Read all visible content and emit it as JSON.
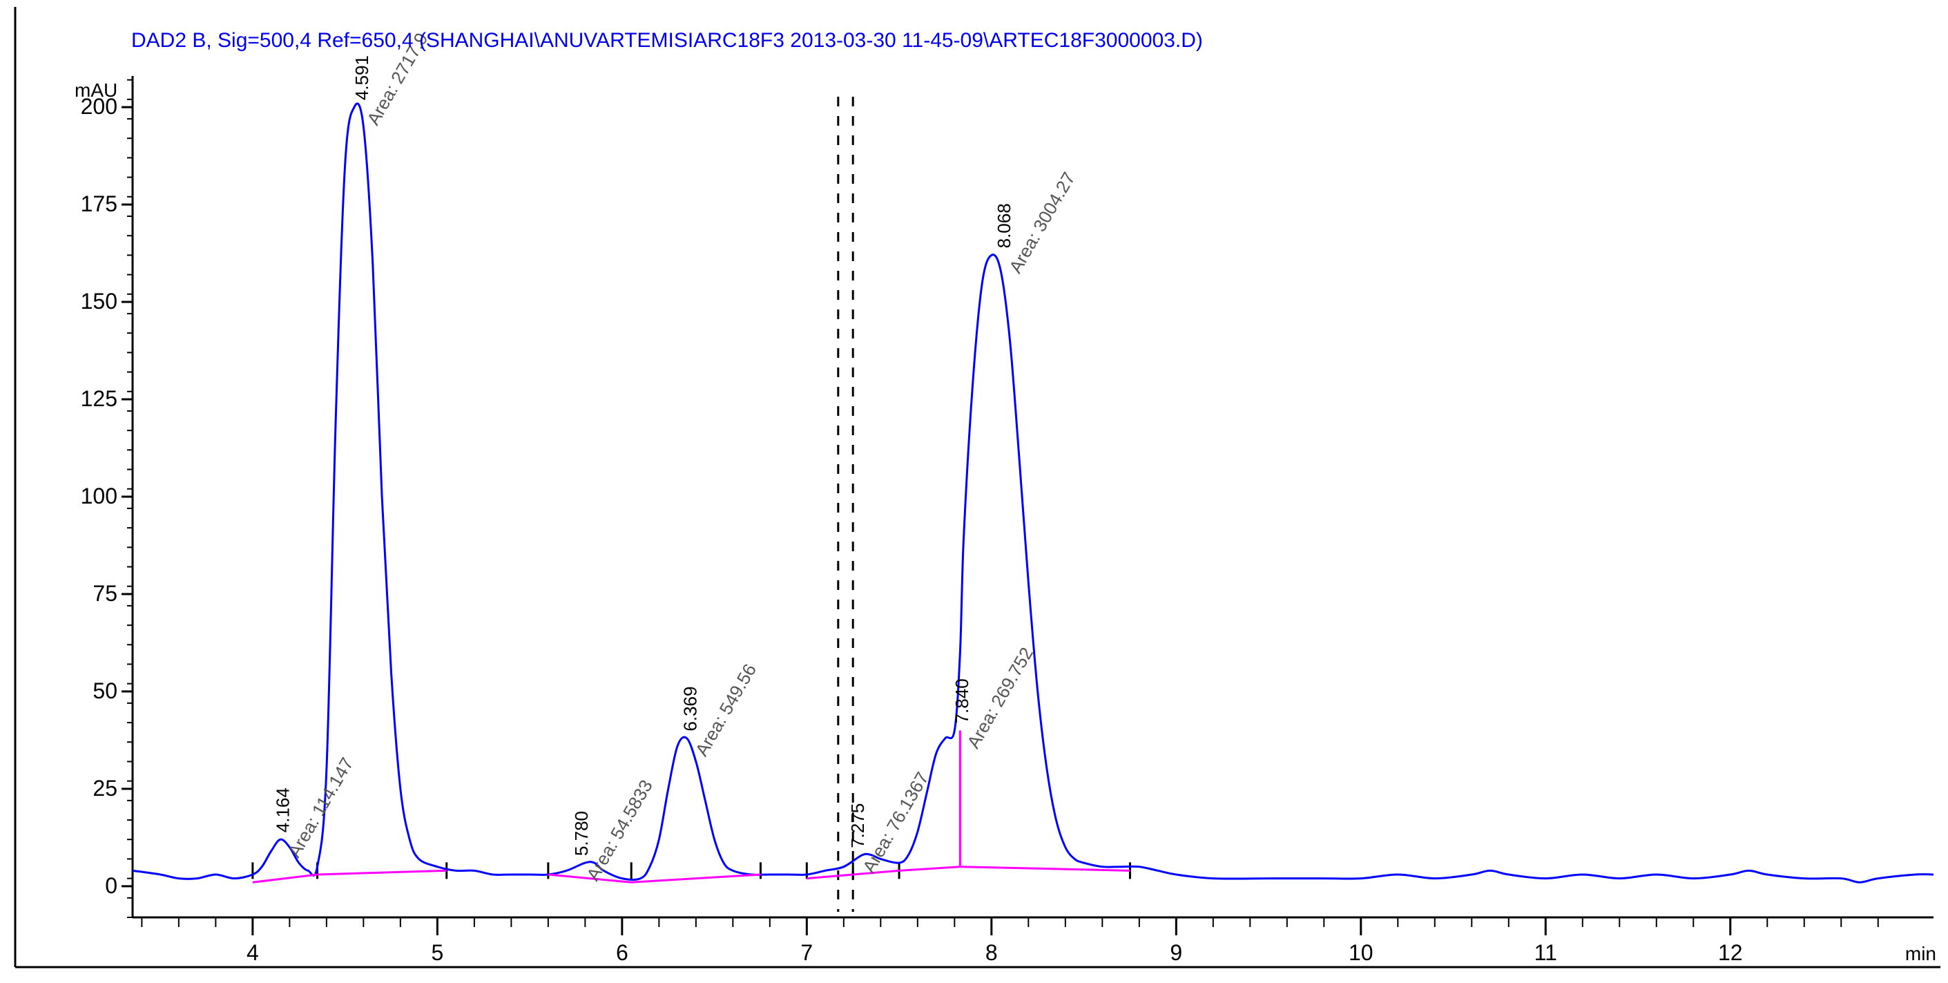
{
  "chart_data": {
    "type": "line",
    "title": "DAD2 B, Sig=500,4 Ref=650,4 (SHANGHAI\\ANUVARTEMISIARC18F3 2013-03-30 11-45-09\\ARTEC18F3000003.D)",
    "ylabel": "mAU",
    "xlabel": "",
    "xlim": [
      3.35,
      13.1
    ],
    "ylim": [
      -8,
      208
    ],
    "x_ticks": [
      4,
      5,
      6,
      7,
      8,
      9,
      10,
      11,
      12
    ],
    "x_tick_labels": [
      "4",
      "5",
      "6",
      "7",
      "8",
      "9",
      "10",
      "11",
      "12"
    ],
    "x_end_label": "min",
    "y_ticks": [
      0,
      25,
      50,
      75,
      100,
      125,
      150,
      175,
      200
    ],
    "y_tick_labels": [
      "0",
      "25",
      "50",
      "75",
      "100",
      "125",
      "150",
      "175",
      "200"
    ],
    "grid": false,
    "series": [
      {
        "color": "#0000ff",
        "x": [
          3.35,
          3.5,
          3.6,
          3.7,
          3.8,
          3.9,
          4.0,
          4.05,
          4.1,
          4.15,
          4.2,
          4.25,
          4.3,
          4.35,
          4.4,
          4.45,
          4.5,
          4.55,
          4.6,
          4.65,
          4.7,
          4.75,
          4.8,
          4.85,
          4.9,
          5.0,
          5.1,
          5.2,
          5.3,
          5.4,
          5.5,
          5.6,
          5.7,
          5.8,
          5.85,
          5.9,
          6.0,
          6.1,
          6.15,
          6.2,
          6.25,
          6.3,
          6.35,
          6.4,
          6.45,
          6.5,
          6.55,
          6.6,
          6.7,
          6.8,
          6.9,
          7.0,
          7.1,
          7.2,
          7.3,
          7.35,
          7.4,
          7.5,
          7.55,
          7.6,
          7.65,
          7.7,
          7.75,
          7.8,
          7.83,
          7.85,
          7.9,
          7.95,
          8.0,
          8.05,
          8.1,
          8.15,
          8.2,
          8.25,
          8.3,
          8.35,
          8.4,
          8.45,
          8.5,
          8.6,
          8.7,
          8.8,
          8.9,
          9.0,
          9.2,
          9.5,
          9.8,
          10.0,
          10.2,
          10.4,
          10.6,
          10.7,
          10.8,
          11.0,
          11.2,
          11.4,
          11.6,
          11.8,
          12.0,
          12.1,
          12.2,
          12.4,
          12.6,
          12.7,
          12.8,
          13.0,
          13.1
        ],
        "y": [
          4,
          3,
          2,
          2,
          3,
          2,
          3,
          5,
          9,
          12,
          10,
          6,
          4,
          5,
          30,
          120,
          185,
          200,
          195,
          160,
          100,
          55,
          25,
          12,
          7,
          5,
          4,
          4,
          3,
          3,
          3,
          3,
          4,
          6,
          6,
          4,
          2,
          2,
          5,
          12,
          25,
          36,
          38,
          32,
          22,
          12,
          6,
          4,
          3,
          3,
          3,
          3,
          4,
          5,
          8,
          8,
          7,
          6,
          8,
          14,
          24,
          34,
          38,
          40,
          60,
          90,
          130,
          155,
          162,
          158,
          140,
          110,
          78,
          50,
          30,
          17,
          10,
          7,
          6,
          5,
          5,
          5,
          4,
          3,
          2,
          2,
          2,
          2,
          3,
          2,
          3,
          4,
          3,
          2,
          3,
          2,
          3,
          2,
          3,
          4,
          3,
          2,
          2,
          1,
          2,
          3,
          3
        ]
      },
      {
        "color": "#ff00ff",
        "name": "baseline",
        "segments": [
          {
            "x": [
              4.0,
              4.35
            ],
            "y": [
              1,
              3
            ]
          },
          {
            "x": [
              4.35,
              5.05
            ],
            "y": [
              3,
              4
            ]
          },
          {
            "x": [
              5.6,
              6.05
            ],
            "y": [
              3,
              1
            ]
          },
          {
            "x": [
              6.05,
              6.75
            ],
            "y": [
              1,
              3
            ]
          },
          {
            "x": [
              7.0,
              7.25
            ],
            "y": [
              2,
              3
            ]
          },
          {
            "x": [
              7.25,
              7.5
            ],
            "y": [
              3,
              4
            ]
          },
          {
            "x": [
              7.5,
              7.83
            ],
            "y": [
              4,
              5
            ]
          },
          {
            "x": [
              7.83,
              8.75
            ],
            "y": [
              5,
              4
            ]
          }
        ],
        "drops": [
          {
            "x": 7.83,
            "y0": 5,
            "y1": 40
          }
        ]
      }
    ],
    "event_markers": [
      {
        "x": 7.17,
        "style": "dashed"
      },
      {
        "x": 7.25,
        "style": "dashed"
      }
    ],
    "peak_ticks": [
      4.0,
      4.35,
      5.05,
      5.6,
      6.05,
      6.75,
      7.0,
      7.25,
      7.5,
      8.75
    ],
    "peaks": [
      {
        "rt": "4.164",
        "area": "Area: 114.147",
        "x": 4.164,
        "y": 12
      },
      {
        "rt": "4.591",
        "area": "Area: 2717.9",
        "x": 4.591,
        "y": 200
      },
      {
        "rt": "5.780",
        "area": "Area: 54.5833",
        "x": 5.78,
        "y": 6
      },
      {
        "rt": "6.369",
        "area": "Area: 549.56",
        "x": 6.369,
        "y": 38
      },
      {
        "rt": "7.275",
        "area": "Area: 76.1367",
        "x": 7.275,
        "y": 8
      },
      {
        "rt": "7.840",
        "area": "Area: 269.752",
        "x": 7.84,
        "y": 40
      },
      {
        "rt": "8.068",
        "area": "Area: 3004.27",
        "x": 8.068,
        "y": 162
      }
    ]
  }
}
